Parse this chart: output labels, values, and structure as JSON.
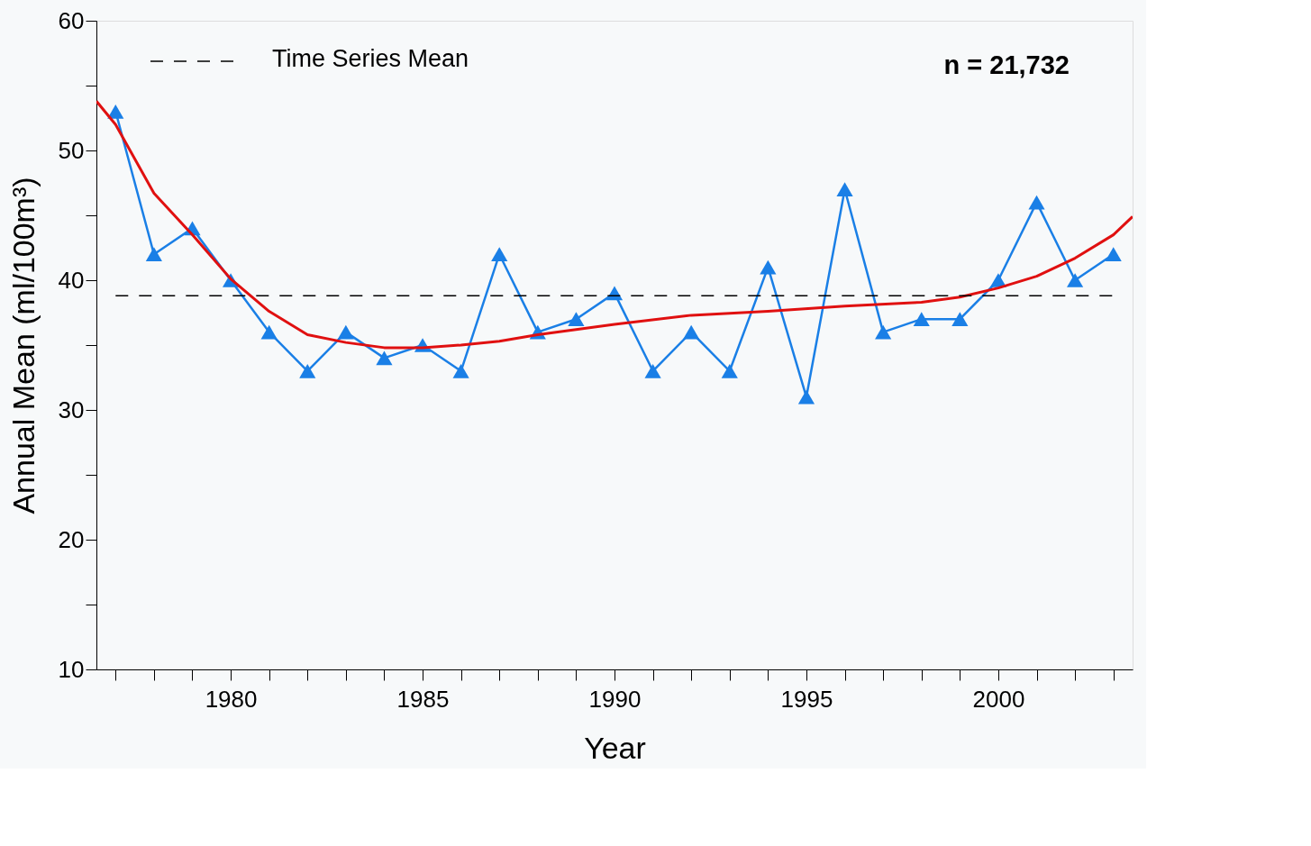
{
  "chart_data": {
    "type": "line",
    "xlabel": "Year",
    "ylabel": "Annual Mean (ml/100m³)",
    "xlim": [
      1976.5,
      2003.5
    ],
    "ylim": [
      10,
      60
    ],
    "xticks": [
      {
        "value": 1977,
        "label": null
      },
      {
        "value": 1978,
        "label": null
      },
      {
        "value": 1979,
        "label": null
      },
      1980,
      {
        "value": 1981,
        "label": null
      },
      {
        "value": 1982,
        "label": null
      },
      {
        "value": 1983,
        "label": null
      },
      {
        "value": 1984,
        "label": null
      },
      1985,
      {
        "value": 1986,
        "label": null
      },
      {
        "value": 1987,
        "label": null
      },
      {
        "value": 1988,
        "label": null
      },
      {
        "value": 1989,
        "label": null
      },
      1990,
      {
        "value": 1991,
        "label": null
      },
      {
        "value": 1992,
        "label": null
      },
      {
        "value": 1993,
        "label": null
      },
      {
        "value": 1994,
        "label": null
      },
      1995,
      {
        "value": 1996,
        "label": null
      },
      {
        "value": 1997,
        "label": null
      },
      {
        "value": 1998,
        "label": null
      },
      {
        "value": 1999,
        "label": null
      },
      2000,
      {
        "value": 2001,
        "label": null
      },
      {
        "value": 2002,
        "label": null
      },
      {
        "value": 2003,
        "label": null
      }
    ],
    "yticks": [
      10,
      {
        "value": 15,
        "label": null
      },
      20,
      {
        "value": 25,
        "label": null
      },
      30,
      {
        "value": 35,
        "label": null
      },
      40,
      {
        "value": 45,
        "label": null
      },
      50,
      {
        "value": 55,
        "label": null
      },
      60
    ],
    "grid": false,
    "legend": "top left",
    "x": [
      1977,
      1978,
      1979,
      1980,
      1981,
      1982,
      1983,
      1984,
      1985,
      1986,
      1987,
      1988,
      1989,
      1990,
      1991,
      1992,
      1993,
      1994,
      1995,
      1996,
      1997,
      1998,
      1999,
      2000,
      2001,
      2002,
      2003
    ],
    "series": [
      {
        "color": "#1a7fe6",
        "marker": "triangle",
        "values": [
          53,
          42,
          44,
          40,
          36,
          33,
          36,
          34,
          35,
          33,
          42,
          36,
          37,
          39,
          33,
          36,
          33,
          41,
          31,
          47,
          36,
          37,
          37,
          40,
          46,
          40,
          42
        ]
      },
      {
        "color": "#e01010",
        "marker": "none",
        "x": [
          1976.5,
          1977,
          1978,
          1979,
          1980,
          1981,
          1982,
          1983,
          1984,
          1985,
          1986,
          1987,
          1988,
          1989,
          1990,
          1992,
          1994,
          1996,
          1998,
          1999,
          2000,
          2001,
          2002,
          2003,
          2003.5
        ],
        "values": [
          53.8,
          52,
          46.7,
          43.5,
          40.1,
          37.6,
          35.8,
          35.2,
          34.8,
          34.8,
          35.0,
          35.3,
          35.8,
          36.2,
          36.6,
          37.3,
          37.6,
          38.0,
          38.3,
          38.7,
          39.4,
          40.3,
          41.7,
          43.5,
          44.9
        ]
      }
    ],
    "ref_lines": [
      {
        "axis": "y",
        "value": 38.8,
        "label": "Time Series Mean",
        "color": "#000000",
        "line_style": "dashed"
      }
    ],
    "annotations": [
      "n = 21,732"
    ]
  }
}
